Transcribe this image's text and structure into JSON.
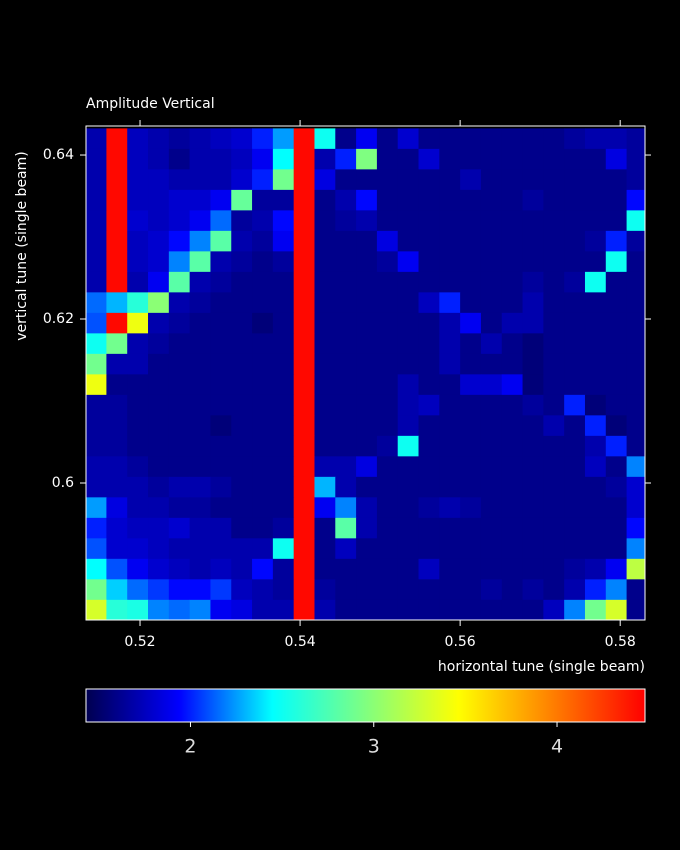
{
  "chart_data": {
    "type": "heatmap",
    "title": "Amplitude Vertical",
    "x_label": "horizontal tune (single beam)",
    "y_label": "vertical tune (single beam)",
    "x": [
      0.5145,
      0.5171,
      0.5197,
      0.5223,
      0.5249,
      0.5275,
      0.5301,
      0.5327,
      0.5353,
      0.5379,
      0.5405,
      0.5431,
      0.5457,
      0.5483,
      0.5509,
      0.5535,
      0.5561,
      0.5587,
      0.5613,
      0.5639,
      0.5665,
      0.5691,
      0.5717,
      0.5743,
      0.5769,
      0.5795,
      0.5821
    ],
    "y": [
      0.642,
      0.6395,
      0.637,
      0.6345,
      0.632,
      0.6295,
      0.627,
      0.6245,
      0.622,
      0.6195,
      0.617,
      0.6145,
      0.612,
      0.6095,
      0.607,
      0.6045,
      0.602,
      0.5995,
      0.597,
      0.5945,
      0.592,
      0.5895,
      0.587,
      0.5845
    ],
    "z": [
      [
        1.7,
        4.45,
        1.75,
        1.7,
        1.65,
        1.7,
        1.75,
        1.8,
        2.0,
        2.25,
        4.45,
        2.5,
        1.6,
        1.9,
        1.6,
        1.8,
        1.6,
        1.6,
        1.6,
        1.6,
        1.6,
        1.6,
        1.6,
        1.65,
        1.7,
        1.7,
        1.65
      ],
      [
        1.7,
        4.45,
        1.75,
        1.7,
        1.6,
        1.7,
        1.7,
        1.75,
        1.9,
        2.45,
        4.45,
        1.7,
        2.0,
        2.95,
        1.6,
        1.6,
        1.8,
        1.6,
        1.6,
        1.6,
        1.6,
        1.6,
        1.6,
        1.6,
        1.6,
        1.85,
        1.65
      ],
      [
        1.7,
        4.45,
        1.75,
        1.75,
        1.7,
        1.7,
        1.7,
        1.8,
        2.0,
        2.9,
        4.45,
        1.85,
        1.6,
        1.6,
        1.6,
        1.6,
        1.6,
        1.6,
        1.7,
        1.6,
        1.6,
        1.6,
        1.6,
        1.6,
        1.6,
        1.6,
        1.65
      ],
      [
        1.7,
        4.45,
        1.75,
        1.75,
        1.8,
        1.8,
        1.9,
        2.85,
        1.65,
        1.65,
        4.45,
        1.6,
        1.7,
        1.95,
        1.6,
        1.6,
        1.6,
        1.6,
        1.6,
        1.6,
        1.6,
        1.65,
        1.6,
        1.6,
        1.6,
        1.6,
        1.95
      ],
      [
        1.7,
        4.45,
        1.8,
        1.75,
        1.8,
        1.9,
        2.15,
        1.65,
        1.7,
        1.95,
        4.45,
        1.6,
        1.65,
        1.7,
        1.6,
        1.6,
        1.6,
        1.6,
        1.6,
        1.6,
        1.6,
        1.6,
        1.6,
        1.6,
        1.6,
        1.6,
        2.5
      ],
      [
        1.7,
        4.45,
        1.75,
        1.8,
        1.95,
        2.2,
        2.8,
        1.7,
        1.65,
        1.9,
        4.45,
        1.6,
        1.6,
        1.6,
        1.85,
        1.6,
        1.6,
        1.6,
        1.6,
        1.6,
        1.6,
        1.6,
        1.6,
        1.6,
        1.65,
        2.0,
        1.65
      ],
      [
        1.7,
        4.45,
        1.75,
        1.8,
        2.2,
        2.8,
        1.7,
        1.65,
        1.6,
        1.65,
        4.45,
        1.6,
        1.6,
        1.6,
        1.65,
        1.9,
        1.6,
        1.6,
        1.6,
        1.6,
        1.6,
        1.6,
        1.6,
        1.6,
        1.6,
        2.5,
        1.6
      ],
      [
        1.7,
        4.45,
        1.7,
        1.9,
        2.8,
        1.7,
        1.65,
        1.6,
        1.6,
        1.6,
        4.45,
        1.6,
        1.6,
        1.6,
        1.6,
        1.6,
        1.6,
        1.6,
        1.6,
        1.6,
        1.6,
        1.65,
        1.6,
        1.65,
        2.5,
        1.6,
        1.6
      ],
      [
        2.15,
        2.3,
        2.6,
        3.0,
        1.7,
        1.65,
        1.6,
        1.6,
        1.6,
        1.6,
        4.45,
        1.6,
        1.6,
        1.6,
        1.6,
        1.6,
        1.75,
        2.0,
        1.6,
        1.6,
        1.6,
        1.7,
        1.6,
        1.6,
        1.6,
        1.6,
        1.6
      ],
      [
        2.1,
        4.45,
        3.4,
        1.7,
        1.65,
        1.6,
        1.6,
        1.6,
        1.55,
        1.6,
        4.45,
        1.6,
        1.6,
        1.6,
        1.6,
        1.6,
        1.6,
        1.7,
        1.9,
        1.6,
        1.7,
        1.7,
        1.6,
        1.6,
        1.6,
        1.6,
        1.6
      ],
      [
        2.5,
        2.9,
        1.7,
        1.65,
        1.6,
        1.6,
        1.6,
        1.6,
        1.6,
        1.6,
        4.45,
        1.6,
        1.6,
        1.6,
        1.6,
        1.6,
        1.6,
        1.7,
        1.6,
        1.7,
        1.6,
        1.55,
        1.6,
        1.6,
        1.6,
        1.6,
        1.6
      ],
      [
        2.9,
        1.7,
        1.7,
        1.6,
        1.6,
        1.6,
        1.6,
        1.6,
        1.6,
        1.6,
        4.45,
        1.6,
        1.6,
        1.6,
        1.6,
        1.6,
        1.6,
        1.7,
        1.6,
        1.6,
        1.6,
        1.55,
        1.6,
        1.6,
        1.6,
        1.6,
        1.6
      ],
      [
        3.4,
        1.6,
        1.6,
        1.6,
        1.6,
        1.6,
        1.6,
        1.6,
        1.6,
        1.6,
        4.45,
        1.6,
        1.6,
        1.6,
        1.6,
        1.7,
        1.6,
        1.6,
        1.8,
        1.8,
        1.9,
        1.55,
        1.6,
        1.6,
        1.6,
        1.6,
        1.6
      ],
      [
        1.65,
        1.65,
        1.6,
        1.6,
        1.6,
        1.6,
        1.6,
        1.6,
        1.6,
        1.6,
        4.45,
        1.6,
        1.6,
        1.6,
        1.6,
        1.7,
        1.75,
        1.6,
        1.6,
        1.6,
        1.6,
        1.65,
        1.6,
        2.0,
        1.55,
        1.6,
        1.6
      ],
      [
        1.65,
        1.65,
        1.6,
        1.6,
        1.6,
        1.6,
        1.55,
        1.6,
        1.6,
        1.6,
        4.45,
        1.6,
        1.6,
        1.6,
        1.6,
        1.7,
        1.6,
        1.6,
        1.6,
        1.6,
        1.6,
        1.6,
        1.7,
        1.6,
        2.0,
        1.55,
        1.6
      ],
      [
        1.65,
        1.65,
        1.6,
        1.6,
        1.6,
        1.6,
        1.6,
        1.6,
        1.6,
        1.6,
        4.45,
        1.6,
        1.6,
        1.6,
        1.65,
        2.5,
        1.6,
        1.6,
        1.6,
        1.6,
        1.6,
        1.6,
        1.6,
        1.6,
        1.7,
        2.0,
        1.6
      ],
      [
        1.7,
        1.7,
        1.65,
        1.6,
        1.6,
        1.6,
        1.6,
        1.6,
        1.6,
        1.6,
        4.45,
        1.7,
        1.7,
        1.85,
        1.6,
        1.6,
        1.6,
        1.6,
        1.6,
        1.6,
        1.6,
        1.6,
        1.6,
        1.6,
        1.75,
        1.6,
        2.2
      ],
      [
        1.7,
        1.7,
        1.7,
        1.65,
        1.7,
        1.7,
        1.65,
        1.6,
        1.6,
        1.6,
        4.45,
        2.3,
        1.7,
        1.6,
        1.6,
        1.6,
        1.6,
        1.6,
        1.6,
        1.6,
        1.6,
        1.6,
        1.6,
        1.6,
        1.6,
        1.65,
        1.8
      ],
      [
        2.25,
        1.85,
        1.7,
        1.7,
        1.65,
        1.65,
        1.6,
        1.6,
        1.6,
        1.6,
        4.45,
        1.9,
        2.2,
        1.7,
        1.6,
        1.6,
        1.65,
        1.7,
        1.65,
        1.6,
        1.6,
        1.6,
        1.6,
        1.6,
        1.6,
        1.6,
        1.8
      ],
      [
        2.0,
        1.8,
        1.75,
        1.75,
        1.8,
        1.7,
        1.7,
        1.6,
        1.6,
        1.65,
        4.45,
        1.6,
        2.8,
        1.7,
        1.6,
        1.6,
        1.6,
        1.6,
        1.6,
        1.6,
        1.6,
        1.6,
        1.6,
        1.6,
        1.6,
        1.6,
        1.95
      ],
      [
        2.1,
        1.8,
        1.8,
        1.75,
        1.7,
        1.7,
        1.7,
        1.7,
        1.7,
        2.5,
        4.45,
        1.6,
        1.75,
        1.6,
        1.6,
        1.6,
        1.6,
        1.6,
        1.6,
        1.6,
        1.6,
        1.6,
        1.6,
        1.6,
        1.6,
        1.6,
        2.2
      ],
      [
        2.45,
        2.1,
        1.9,
        1.8,
        1.75,
        1.7,
        1.75,
        1.7,
        1.95,
        1.65,
        4.45,
        1.6,
        1.6,
        1.6,
        1.6,
        1.6,
        1.75,
        1.6,
        1.6,
        1.6,
        1.6,
        1.6,
        1.6,
        1.65,
        1.7,
        1.9,
        3.2
      ],
      [
        2.9,
        2.35,
        2.15,
        2.05,
        1.95,
        1.95,
        2.05,
        1.75,
        1.7,
        1.65,
        4.45,
        1.65,
        1.6,
        1.6,
        1.6,
        1.6,
        1.6,
        1.6,
        1.6,
        1.65,
        1.6,
        1.65,
        1.6,
        1.7,
        2.0,
        2.2,
        1.6
      ],
      [
        3.3,
        2.6,
        2.55,
        2.2,
        2.15,
        2.2,
        1.9,
        1.85,
        1.7,
        1.7,
        4.45,
        1.7,
        1.6,
        1.6,
        1.6,
        1.6,
        1.6,
        1.6,
        1.6,
        1.6,
        1.6,
        1.6,
        1.75,
        2.2,
        2.9,
        3.3,
        1.6
      ]
    ],
    "xlim": [
      0.51325,
      0.5831
    ],
    "ylim": [
      0.58329,
      0.64354
    ],
    "xticks": [
      0.52,
      0.54,
      0.56,
      0.58
    ],
    "yticks": [
      0.6,
      0.62,
      0.64
    ],
    "zlim": [
      1.43,
      4.48
    ],
    "zticks": [
      2,
      3,
      4
    ],
    "colormap": [
      "#000050",
      "#0000ff",
      "#00ffff",
      "#80ff80",
      "#ffff00",
      "#ff8000",
      "#ff0000"
    ]
  }
}
